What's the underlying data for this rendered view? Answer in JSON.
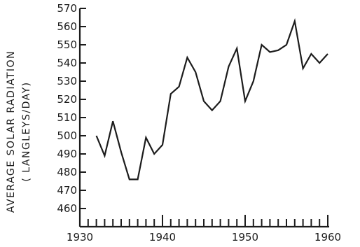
{
  "chart_data": {
    "type": "line",
    "ylabel_line1": "AVERAGE SOLAR RADIATION",
    "ylabel_line2": "( LANGLEYS/DAY)",
    "xlabel": "",
    "title": "",
    "ylim": [
      455,
      570
    ],
    "xlim": [
      1930,
      1960
    ],
    "y_ticks": [
      460,
      470,
      480,
      490,
      500,
      510,
      520,
      530,
      540,
      550,
      560,
      570
    ],
    "x_tick_labels": [
      1930,
      1940,
      1950,
      1960
    ],
    "x_minor_ticks": [
      1931,
      1932,
      1933,
      1934,
      1935,
      1936,
      1937,
      1938,
      1939,
      1940,
      1941,
      1942,
      1943,
      1944,
      1945,
      1946,
      1947,
      1948,
      1949,
      1950,
      1951,
      1952,
      1953,
      1954,
      1955,
      1956,
      1957,
      1958,
      1959,
      1960
    ],
    "grid": false,
    "x": [
      1932,
      1933,
      1934,
      1935,
      1936,
      1937,
      1938,
      1939,
      1940,
      1941,
      1942,
      1943,
      1944,
      1945,
      1946,
      1947,
      1948,
      1949,
      1950,
      1951,
      1952,
      1953,
      1954,
      1955,
      1956,
      1957,
      1958,
      1959,
      1960
    ],
    "y": [
      500,
      489,
      508,
      491,
      476,
      476,
      499,
      490,
      495,
      523,
      527,
      543,
      535,
      519,
      514,
      519,
      538,
      548,
      519,
      530,
      550,
      546,
      547,
      550,
      563,
      537,
      545,
      540,
      545
    ],
    "colors": {
      "line": "#1c1c1c",
      "axis": "#1c1c1c",
      "background": "#ffffff"
    }
  }
}
